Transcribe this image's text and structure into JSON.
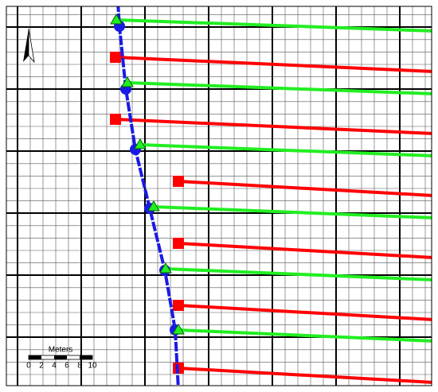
{
  "scale_bar": {
    "title": "Meters",
    "labels": [
      "0",
      "2",
      "4",
      "6",
      "8",
      "10"
    ]
  }
}
